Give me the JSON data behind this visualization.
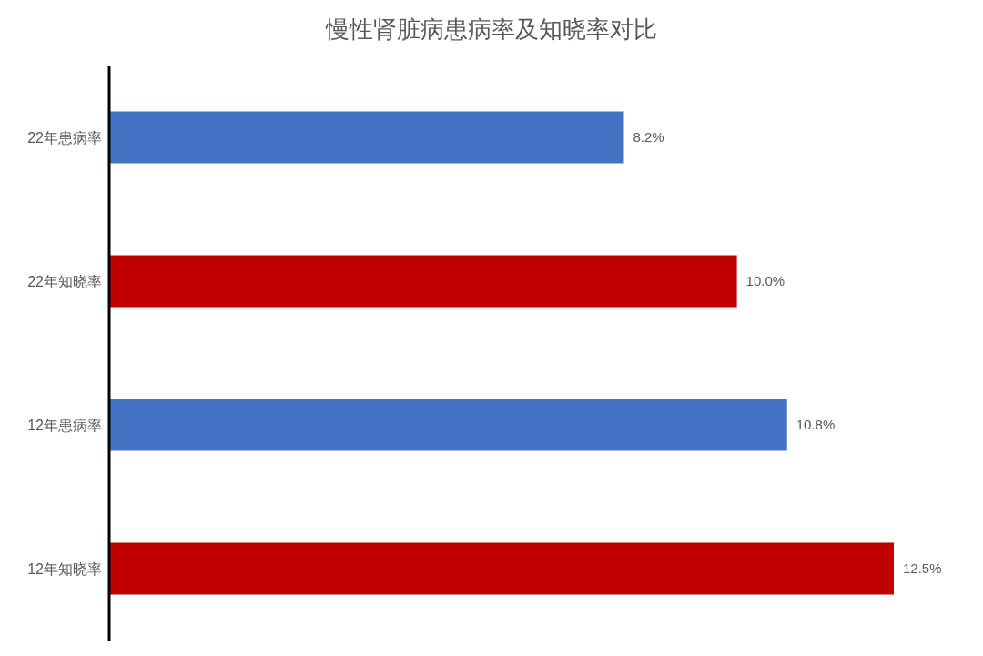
{
  "chart_data": {
    "type": "bar",
    "orientation": "horizontal",
    "title": "慢性肾脏病患病率及知晓率对比",
    "categories": [
      "22年患病率",
      "22年知晓率",
      "12年患病率",
      "12年知晓率"
    ],
    "values": [
      8.2,
      10.0,
      10.8,
      12.5
    ],
    "colors": [
      "#4472c4",
      "#c00000",
      "#4472c4",
      "#c00000"
    ],
    "value_labels": [
      "8.2%",
      "10.0%",
      "10.8%",
      "12.5%"
    ]
  }
}
